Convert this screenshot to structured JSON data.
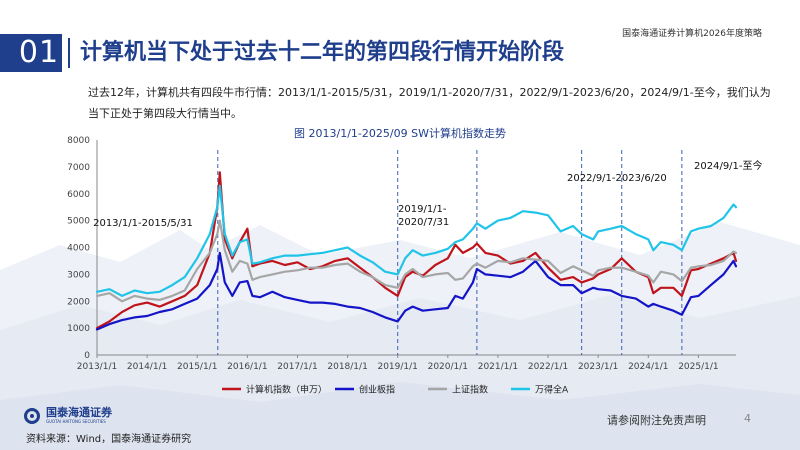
{
  "header": {
    "section_number": "01",
    "title": "计算机当下处于过去十二年的第四段行情开始阶段",
    "report_name": "国泰海通证券计算机2026年度策略"
  },
  "intro": "过去12年，计算机共有四段牛市行情：2013/1/1-2015/5/31，2019/1/1-2020/7/31，2022/9/1-2023/6/20，2024/9/1-至今，我们认为当下正处于第四段大行情当中。",
  "footer": {
    "logo_text": "国泰海通证券",
    "logo_en": "GUOTAI HAITONG SECURITIES",
    "source": "资料来源：Wind，国泰海通证券研究",
    "disclaimer": "请参阅附注免责声明",
    "page": "4"
  },
  "colors": {
    "brand": "#1f3e8c",
    "red": "#c0141c",
    "blue": "#1414c8",
    "gray": "#a6a6a6",
    "cyan": "#20c4e8"
  },
  "chart_data": {
    "type": "line",
    "title": "图 2013/1/1-2025/09 SW计算机指数走势",
    "ylim": [
      0,
      8000
    ],
    "y_ticks": [
      "0",
      "1000",
      "2000",
      "3000",
      "4000",
      "5000",
      "6000",
      "7000",
      "8000"
    ],
    "x_ticks": [
      "2013/1/1",
      "2014/1/1",
      "2015/1/1",
      "2016/1/1",
      "2017/1/1",
      "2018/1/1",
      "2019/1/1",
      "2020/1/1",
      "2021/1/1",
      "2022/1/1",
      "2023/1/1",
      "2024/1/1",
      "2025/1/1"
    ],
    "grid": false,
    "legend_position": "bottom",
    "x": [
      2013.0,
      2013.25,
      2013.5,
      2013.75,
      2014.0,
      2014.25,
      2014.5,
      2014.75,
      2015.0,
      2015.25,
      2015.4,
      2015.45,
      2015.55,
      2015.7,
      2015.85,
      2016.0,
      2016.1,
      2016.25,
      2016.5,
      2016.75,
      2017.0,
      2017.25,
      2017.5,
      2017.75,
      2018.0,
      2018.25,
      2018.5,
      2018.75,
      2019.0,
      2019.15,
      2019.3,
      2019.5,
      2019.75,
      2020.0,
      2020.15,
      2020.3,
      2020.5,
      2020.58,
      2020.75,
      2021.0,
      2021.25,
      2021.5,
      2021.75,
      2022.0,
      2022.25,
      2022.5,
      2022.67,
      2022.9,
      2023.0,
      2023.25,
      2023.47,
      2023.75,
      2024.0,
      2024.1,
      2024.25,
      2024.5,
      2024.67,
      2024.85,
      2025.0,
      2025.25,
      2025.5,
      2025.7,
      2025.75
    ],
    "series": [
      {
        "name": "计算机指数（申万）",
        "color": "#c0141c",
        "values": [
          1000,
          1250,
          1600,
          1850,
          1950,
          1800,
          2000,
          2200,
          2600,
          3800,
          5500,
          6800,
          4300,
          3600,
          4200,
          4700,
          3300,
          3400,
          3500,
          3350,
          3450,
          3200,
          3300,
          3500,
          3600,
          3250,
          2900,
          2500,
          2200,
          2900,
          3100,
          2950,
          3350,
          3600,
          4100,
          3800,
          4000,
          4150,
          3800,
          3700,
          3400,
          3500,
          3800,
          3250,
          2800,
          2900,
          2700,
          2850,
          3000,
          3200,
          3600,
          3100,
          2900,
          2300,
          2500,
          2500,
          2200,
          3150,
          3200,
          3400,
          3600,
          3800,
          3500
        ]
      },
      {
        "name": "创业板指",
        "color": "#1414c8",
        "values": [
          950,
          1150,
          1300,
          1400,
          1450,
          1600,
          1700,
          1900,
          2100,
          2600,
          3200,
          3800,
          2700,
          2200,
          2700,
          2750,
          2200,
          2150,
          2350,
          2150,
          2050,
          1950,
          1950,
          1900,
          1800,
          1750,
          1600,
          1400,
          1250,
          1650,
          1800,
          1650,
          1700,
          1750,
          2200,
          2100,
          2700,
          3200,
          3000,
          2950,
          2900,
          3100,
          3500,
          2900,
          2600,
          2600,
          2300,
          2500,
          2450,
          2400,
          2200,
          2100,
          1800,
          1900,
          1800,
          1650,
          1500,
          2150,
          2200,
          2600,
          3000,
          3500,
          3300
        ]
      },
      {
        "name": "上证指数",
        "color": "#a6a6a6",
        "values": [
          2200,
          2300,
          2000,
          2200,
          2100,
          2050,
          2200,
          2400,
          3200,
          3800,
          4500,
          5000,
          3900,
          3100,
          3500,
          3400,
          2800,
          2900,
          3000,
          3100,
          3150,
          3250,
          3250,
          3350,
          3400,
          3100,
          2900,
          2600,
          2500,
          3000,
          3200,
          2900,
          3000,
          3050,
          2800,
          2850,
          3300,
          3400,
          3250,
          3500,
          3450,
          3600,
          3550,
          3500,
          3050,
          3300,
          3150,
          2950,
          3150,
          3250,
          3250,
          3100,
          2950,
          2700,
          3100,
          3000,
          2750,
          3250,
          3300,
          3350,
          3500,
          3850,
          3800
        ]
      },
      {
        "name": "万得全A",
        "color": "#20c4e8",
        "values": [
          2350,
          2450,
          2200,
          2400,
          2300,
          2350,
          2600,
          2900,
          3600,
          4500,
          5500,
          6300,
          4500,
          3700,
          4200,
          4300,
          3400,
          3450,
          3600,
          3700,
          3700,
          3750,
          3800,
          3900,
          4000,
          3700,
          3450,
          3100,
          3000,
          3600,
          3900,
          3700,
          3800,
          3950,
          4200,
          4300,
          4700,
          4900,
          4700,
          5000,
          5100,
          5350,
          5300,
          5200,
          4600,
          4800,
          4500,
          4300,
          4600,
          4700,
          4800,
          4500,
          4300,
          3900,
          4200,
          4100,
          3900,
          4600,
          4700,
          4800,
          5100,
          5600,
          5500
        ]
      }
    ],
    "bull_periods": [
      {
        "label": "2013/1/1-2015/5/31",
        "end": 2015.41
      },
      {
        "label": "2019/1/1-2020/7/31",
        "start": 2019.0,
        "end": 2020.58
      },
      {
        "label": "2022/9/1-2023/6/20",
        "start": 2022.67,
        "end": 2023.47
      },
      {
        "label": "2024/9/1-至今",
        "start": 2024.67
      }
    ]
  }
}
